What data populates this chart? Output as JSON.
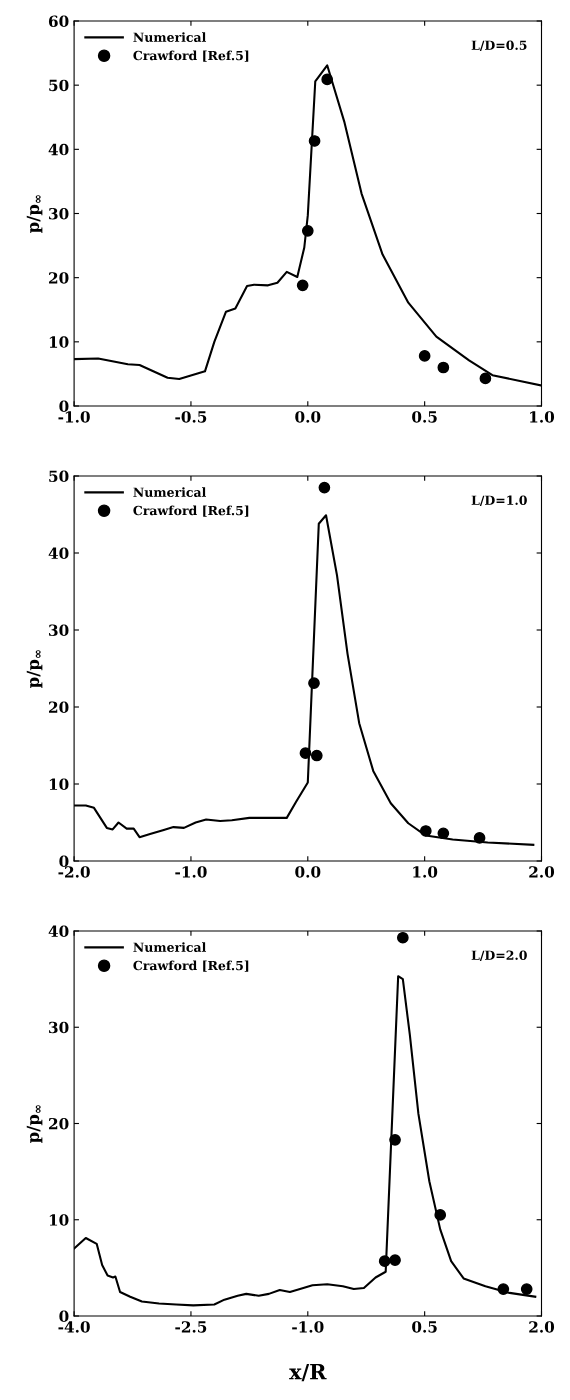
{
  "chart_data": [
    {
      "type": "line",
      "ylabel": "p/p$_{∞}$",
      "annotations": [
        "L/D=0.5"
      ],
      "legend": "top left",
      "xlim": [
        -1.0,
        1.0
      ],
      "ylim": [
        0,
        60
      ],
      "xticks": [
        {
          "value": -1.0,
          "label": "-1.0"
        },
        {
          "value": -0.5,
          "label": "-0.5"
        },
        {
          "value": 0.0,
          "label": "0.0"
        },
        {
          "value": 0.5,
          "label": "0.5"
        },
        {
          "value": 1.0,
          "label": "1.0"
        }
      ],
      "yticks": [
        0,
        10,
        20,
        30,
        40,
        50,
        60
      ],
      "series": [
        {
          "name": "Numerical",
          "color": "#000000",
          "marker": "none",
          "line_style": "solid",
          "x": [
            -1.0,
            -0.897,
            -0.77,
            -0.72,
            -0.6,
            -0.55,
            -0.44,
            -0.4,
            -0.35,
            -0.31,
            -0.26,
            -0.23,
            -0.17,
            -0.13,
            -0.09,
            -0.045,
            -0.015,
            0.0,
            0.032,
            0.083,
            0.157,
            0.23,
            0.32,
            0.43,
            0.55,
            0.69,
            0.79,
            1.0
          ],
          "values": [
            7.3,
            7.4,
            6.5,
            6.4,
            4.4,
            4.2,
            5.4,
            10,
            14.7,
            15.2,
            18.7,
            18.9,
            18.8,
            19.2,
            20.9,
            20.1,
            24.7,
            29.7,
            50.6,
            53.1,
            44.2,
            33.1,
            23.6,
            16.1,
            10.8,
            7.1,
            4.8,
            3.2
          ]
        },
        {
          "name": "Crawford [Ref.5]",
          "type": "scatter",
          "color": "#000000",
          "marker": "circle",
          "x": [
            -0.022,
            0.0,
            0.029,
            0.083,
            0.5,
            0.58,
            0.76
          ],
          "values": [
            18.8,
            27.3,
            41.3,
            50.9,
            7.8,
            6.0,
            4.3
          ]
        }
      ]
    },
    {
      "type": "line",
      "ylabel": "p/p$_{∞}$",
      "annotations": [
        "L/D=1.0"
      ],
      "legend": "top left",
      "xlim": [
        -2.0,
        2.0
      ],
      "ylim": [
        0,
        50
      ],
      "xticks": [
        {
          "value": -2.0,
          "label": "-2.0"
        },
        {
          "value": -1.0,
          "label": "-1.0"
        },
        {
          "value": 0.0,
          "label": "0.0"
        },
        {
          "value": 1.0,
          "label": "1.0"
        },
        {
          "value": 2.0,
          "label": "2.0"
        }
      ],
      "yticks": [
        0,
        10,
        20,
        30,
        40,
        50
      ],
      "series": [
        {
          "name": "Numerical",
          "color": "#000000",
          "marker": "none",
          "line_style": "solid",
          "x": [
            -2.0,
            -1.9,
            -1.83,
            -1.72,
            -1.67,
            -1.62,
            -1.55,
            -1.49,
            -1.44,
            -1.35,
            -1.24,
            -1.15,
            -1.06,
            -0.96,
            -0.87,
            -0.75,
            -0.65,
            -0.5,
            -0.38,
            -0.27,
            -0.18,
            -0.1,
            0.0,
            0.094,
            0.156,
            0.25,
            0.34,
            0.44,
            0.56,
            0.71,
            0.86,
            1.01,
            1.24,
            1.54,
            1.93
          ],
          "values": [
            7.2,
            7.2,
            6.9,
            4.3,
            4.1,
            5.0,
            4.2,
            4.2,
            3.1,
            3.5,
            4.0,
            4.4,
            4.3,
            5.0,
            5.4,
            5.2,
            5.3,
            5.6,
            5.6,
            5.6,
            5.6,
            7.7,
            10.2,
            43.8,
            44.9,
            37.1,
            26.9,
            17.9,
            11.7,
            7.5,
            4.9,
            3.3,
            2.8,
            2.4,
            2.1
          ]
        },
        {
          "name": "Crawford [Ref.5]",
          "type": "scatter",
          "color": "#000000",
          "marker": "circle",
          "x": [
            -0.02,
            0.053,
            0.077,
            0.142,
            1.01,
            1.16,
            1.47
          ],
          "values": [
            14.0,
            23.1,
            13.7,
            48.5,
            3.9,
            3.6,
            3.0
          ]
        }
      ]
    },
    {
      "type": "line",
      "xlabel": "x/R",
      "ylabel": "p/p$_{∞}$",
      "annotations": [
        "L/D=2.0"
      ],
      "legend": "top left",
      "xlim": [
        -4.0,
        2.0
      ],
      "ylim": [
        0,
        40
      ],
      "xticks": [
        {
          "value": -4.0,
          "label": "-4.0"
        },
        {
          "value": -2.5,
          "label": "-2.5"
        },
        {
          "value": -1.0,
          "label": "-1.0"
        },
        {
          "value": 0.5,
          "label": "0.5"
        },
        {
          "value": 2.0,
          "label": "2.0"
        }
      ],
      "yticks": [
        0,
        10,
        20,
        30,
        40
      ],
      "series": [
        {
          "name": "Numerical",
          "color": "#000000",
          "marker": "none",
          "line_style": "solid",
          "x": [
            -4.0,
            -3.85,
            -3.71,
            -3.64,
            -3.57,
            -3.5,
            -3.47,
            -3.41,
            -3.28,
            -3.13,
            -2.91,
            -2.69,
            -2.47,
            -2.2,
            -2.07,
            -1.9,
            -1.79,
            -1.63,
            -1.5,
            -1.36,
            -1.23,
            -1.1,
            -0.94,
            -0.75,
            -0.55,
            -0.41,
            -0.28,
            -0.13,
            0.0,
            0.16,
            0.22,
            0.31,
            0.42,
            0.56,
            0.7,
            0.84,
            1.0,
            1.28,
            1.59,
            1.92
          ],
          "values": [
            7.0,
            8.1,
            7.5,
            5.3,
            4.2,
            4.0,
            4.1,
            2.5,
            2.0,
            1.5,
            1.3,
            1.2,
            1.1,
            1.2,
            1.7,
            2.1,
            2.3,
            2.1,
            2.3,
            2.7,
            2.5,
            2.8,
            3.2,
            3.3,
            3.1,
            2.8,
            2.9,
            4.0,
            4.6,
            35.3,
            35.0,
            29.2,
            21.0,
            14.0,
            9.0,
            5.7,
            3.9,
            3.1,
            2.4,
            2.0
          ]
        },
        {
          "name": "Crawford [Ref.5]",
          "type": "scatter",
          "color": "#000000",
          "marker": "circle",
          "x": [
            -0.013,
            0.12,
            0.12,
            0.22,
            0.7,
            1.51,
            1.81
          ],
          "values": [
            5.7,
            18.3,
            5.8,
            39.3,
            10.5,
            2.8,
            2.8
          ]
        }
      ]
    }
  ]
}
